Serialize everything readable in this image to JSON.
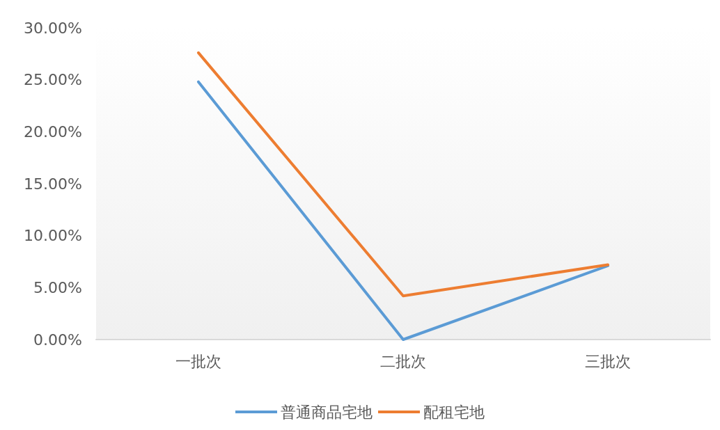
{
  "chart_data": {
    "type": "line",
    "categories": [
      "一批次",
      "二批次",
      "三批次"
    ],
    "series": [
      {
        "name": "普通商品宅地",
        "color": "#5b9bd5",
        "values": [
          24.8,
          0,
          7.1
        ]
      },
      {
        "name": "配租宅地",
        "color": "#ed7d31",
        "values": [
          27.6,
          4.2,
          7.2
        ]
      }
    ],
    "ylim": [
      0,
      30
    ],
    "yticks": [
      {
        "value": 0,
        "label": "0.00%"
      },
      {
        "value": 5,
        "label": "5.00%"
      },
      {
        "value": 10,
        "label": "10.00%"
      },
      {
        "value": 15,
        "label": "15.00%"
      },
      {
        "value": 20,
        "label": "20.00%"
      },
      {
        "value": 25,
        "label": "25.00%"
      },
      {
        "value": 30,
        "label": "30.00%"
      }
    ],
    "legend": "bottom",
    "marker": "none",
    "line_style": "solid",
    "grid": false
  }
}
